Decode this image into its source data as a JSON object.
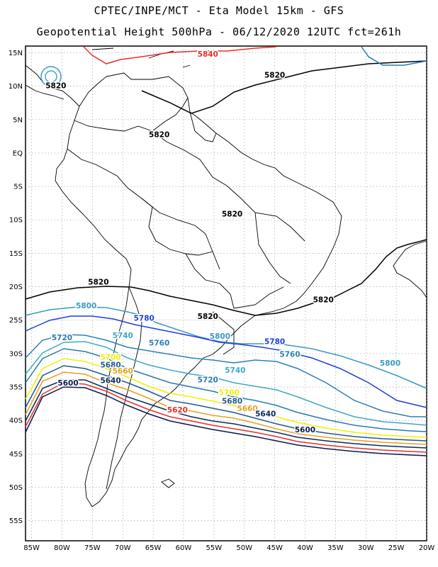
{
  "title_line1": "CPTEC/INPE/MCT  -  Eta Model 15km - GFS",
  "title_line2": "Geopotential Height 500hPa - 06/12/2020 12UTC fct=261h",
  "lat_labels": [
    "15N",
    "10N",
    "5N",
    "EQ",
    "5S",
    "10S",
    "15S",
    "20S",
    "25S",
    "30S",
    "35S",
    "40S",
    "45S",
    "50S",
    "55S"
  ],
  "lon_labels": [
    "85W",
    "80W",
    "75W",
    "70W",
    "65W",
    "60W",
    "55W",
    "50W",
    "45W",
    "40W",
    "35W",
    "30W",
    "25W",
    "20W"
  ],
  "map": {
    "lon_min": -86,
    "lon_max": -20,
    "lat_min": -58,
    "lat_max": 16
  },
  "colors": {
    "5840": "#e8302a",
    "5820": "#000000",
    "5800": "#3a9bc0",
    "5780": "#1f3fd8",
    "5760": "#2d7fb8",
    "5740": "#3fa8c8",
    "5720": "#2a7ab0",
    "5700": "#f0f000",
    "5680": "#1f5a8a",
    "5660": "#e8a020",
    "5640": "#0a2a5a",
    "5620": "#e8302a",
    "5600": "#0a1a4a"
  },
  "contour_labels": [
    {
      "text": "5840",
      "level": "5840",
      "lon": -56,
      "lat": 14.4
    },
    {
      "text": "5820",
      "level": "5820",
      "lon": -81,
      "lat": 9.7
    },
    {
      "text": "5820",
      "level": "5820",
      "lon": -45,
      "lat": 11.3
    },
    {
      "text": "5820",
      "level": "5820",
      "lon": -64,
      "lat": 2.4
    },
    {
      "text": "5820",
      "level": "5820",
      "lon": -52,
      "lat": -9.5
    },
    {
      "text": "5820",
      "level": "5820",
      "lon": -74,
      "lat": -19.7
    },
    {
      "text": "5820",
      "level": "5820",
      "lon": -56,
      "lat": -24.8
    },
    {
      "text": "5820",
      "level": "5820",
      "lon": -37,
      "lat": -22.3
    },
    {
      "text": "5800",
      "level": "5800",
      "lon": -76,
      "lat": -23.2
    },
    {
      "text": "5800",
      "level": "5800",
      "lon": -54,
      "lat": -27.8
    },
    {
      "text": "5800",
      "level": "5800",
      "lon": -26,
      "lat": -31.8
    },
    {
      "text": "5780",
      "level": "5780",
      "lon": -66.5,
      "lat": -25.1
    },
    {
      "text": "5780",
      "level": "5780",
      "lon": -45,
      "lat": -28.6
    },
    {
      "text": "5760",
      "level": "5760",
      "lon": -64,
      "lat": -28.8
    },
    {
      "text": "5760",
      "level": "5760",
      "lon": -42.5,
      "lat": -30.5
    },
    {
      "text": "5740",
      "level": "5740",
      "lon": -70,
      "lat": -27.7
    },
    {
      "text": "5740",
      "level": "5740",
      "lon": -51.5,
      "lat": -32.9
    },
    {
      "text": "5720",
      "level": "5720",
      "lon": -80,
      "lat": -28.0
    },
    {
      "text": "5720",
      "level": "5720",
      "lon": -56,
      "lat": -34.3
    },
    {
      "text": "5700",
      "level": "5700",
      "lon": -72,
      "lat": -30.9
    },
    {
      "text": "5700",
      "level": "5700",
      "lon": -52.5,
      "lat": -36.2
    },
    {
      "text": "5680",
      "level": "5680",
      "lon": -72,
      "lat": -32.1
    },
    {
      "text": "5680",
      "level": "5680",
      "lon": -52,
      "lat": -37.5
    },
    {
      "text": "5660",
      "level": "5660",
      "lon": -70,
      "lat": -33.0
    },
    {
      "text": "5660",
      "level": "5660",
      "lon": -49.5,
      "lat": -38.6
    },
    {
      "text": "5640",
      "level": "5640",
      "lon": -72,
      "lat": -34.4
    },
    {
      "text": "5640",
      "level": "5640",
      "lon": -46.5,
      "lat": -39.4
    },
    {
      "text": "5620",
      "level": "5620",
      "lon": -61,
      "lat": -38.8
    },
    {
      "text": "5600",
      "level": "5600",
      "lon": -79,
      "lat": -34.8
    },
    {
      "text": "5600",
      "level": "5600",
      "lon": -40,
      "lat": -41.8
    }
  ]
}
